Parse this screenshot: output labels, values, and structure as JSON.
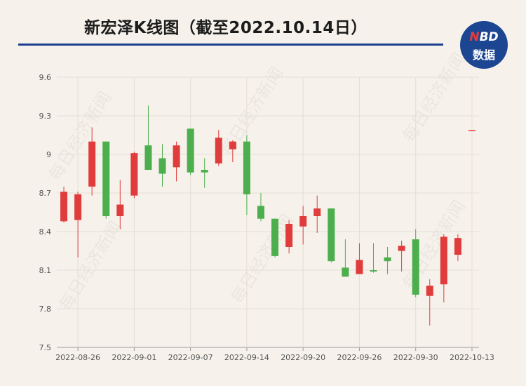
{
  "chart_title": "新宏泽K线图（截至2022.10.14日）",
  "logo": {
    "top_prefix": "N",
    "top_rest": "BD",
    "bottom": "数据"
  },
  "watermark_text": "每日经济新闻",
  "colors": {
    "up": "#e03c3c",
    "down": "#4cae4c",
    "rule": "#1b3f8f",
    "logo": "#1d4692"
  },
  "chart_data": {
    "type": "candlestick",
    "title": "新宏泽K线图（截至2022.10.14日）",
    "ylim": [
      7.5,
      9.6
    ],
    "yticks": [
      7.5,
      7.8,
      8.1,
      8.4,
      8.7,
      9,
      9.3,
      9.6
    ],
    "ytick_labels": [
      "7.5",
      "7.8",
      "8.1",
      "8.4",
      "8.7",
      "9",
      "9.3",
      "9.6"
    ],
    "xtick_labels": [
      {
        "label": "2022-08-26",
        "index": 1
      },
      {
        "label": "2022-09-01",
        "index": 5
      },
      {
        "label": "2022-09-07",
        "index": 9
      },
      {
        "label": "2022-09-14",
        "index": 13
      },
      {
        "label": "2022-09-20",
        "index": 17
      },
      {
        "label": "2022-09-26",
        "index": 21
      },
      {
        "label": "2022-09-30",
        "index": 25
      },
      {
        "label": "2022-10-13",
        "index": 29
      }
    ],
    "candles": [
      {
        "open": 8.48,
        "close": 8.71,
        "high": 8.75,
        "low": 8.47
      },
      {
        "open": 8.49,
        "close": 8.69,
        "high": 8.71,
        "low": 8.2
      },
      {
        "open": 8.75,
        "close": 9.1,
        "high": 9.21,
        "low": 8.68
      },
      {
        "open": 9.1,
        "close": 8.52,
        "high": 9.1,
        "low": 8.5
      },
      {
        "open": 8.52,
        "close": 8.61,
        "high": 8.8,
        "low": 8.42
      },
      {
        "open": 8.68,
        "close": 9.01,
        "high": 9.02,
        "low": 8.66
      },
      {
        "open": 9.07,
        "close": 8.88,
        "high": 9.38,
        "low": 8.88
      },
      {
        "open": 8.97,
        "close": 8.85,
        "high": 9.08,
        "low": 8.75
      },
      {
        "open": 8.9,
        "close": 9.07,
        "high": 9.1,
        "low": 8.79
      },
      {
        "open": 9.2,
        "close": 8.86,
        "high": 9.2,
        "low": 8.84
      },
      {
        "open": 8.88,
        "close": 8.86,
        "high": 8.97,
        "low": 8.74
      },
      {
        "open": 8.93,
        "close": 9.13,
        "high": 9.19,
        "low": 8.91
      },
      {
        "open": 9.04,
        "close": 9.1,
        "high": 9.11,
        "low": 8.94
      },
      {
        "open": 9.1,
        "close": 8.69,
        "high": 9.15,
        "low": 8.53
      },
      {
        "open": 8.6,
        "close": 8.5,
        "high": 8.7,
        "low": 8.48
      },
      {
        "open": 8.5,
        "close": 8.21,
        "high": 8.5,
        "low": 8.2
      },
      {
        "open": 8.28,
        "close": 8.46,
        "high": 8.49,
        "low": 8.23
      },
      {
        "open": 8.44,
        "close": 8.52,
        "high": 8.6,
        "low": 8.3
      },
      {
        "open": 8.52,
        "close": 8.58,
        "high": 8.68,
        "low": 8.39
      },
      {
        "open": 8.58,
        "close": 8.17,
        "high": 8.58,
        "low": 8.16
      },
      {
        "open": 8.12,
        "close": 8.05,
        "high": 8.34,
        "low": 8.05
      },
      {
        "open": 8.07,
        "close": 8.18,
        "high": 8.31,
        "low": 8.07
      },
      {
        "open": 8.1,
        "close": 8.09,
        "high": 8.31,
        "low": 8.08
      },
      {
        "open": 8.2,
        "close": 8.17,
        "high": 8.28,
        "low": 8.07
      },
      {
        "open": 8.25,
        "close": 8.29,
        "high": 8.33,
        "low": 8.09
      },
      {
        "open": 8.34,
        "close": 7.91,
        "high": 8.42,
        "low": 7.89
      },
      {
        "open": 7.9,
        "close": 7.98,
        "high": 8.03,
        "low": 7.67
      },
      {
        "open": 7.99,
        "close": 8.36,
        "high": 8.38,
        "low": 7.85
      },
      {
        "open": 8.22,
        "close": 8.35,
        "high": 8.38,
        "low": 8.17
      },
      {
        "open": 9.19,
        "close": 9.19,
        "high": 9.19,
        "low": 9.19
      }
    ]
  }
}
